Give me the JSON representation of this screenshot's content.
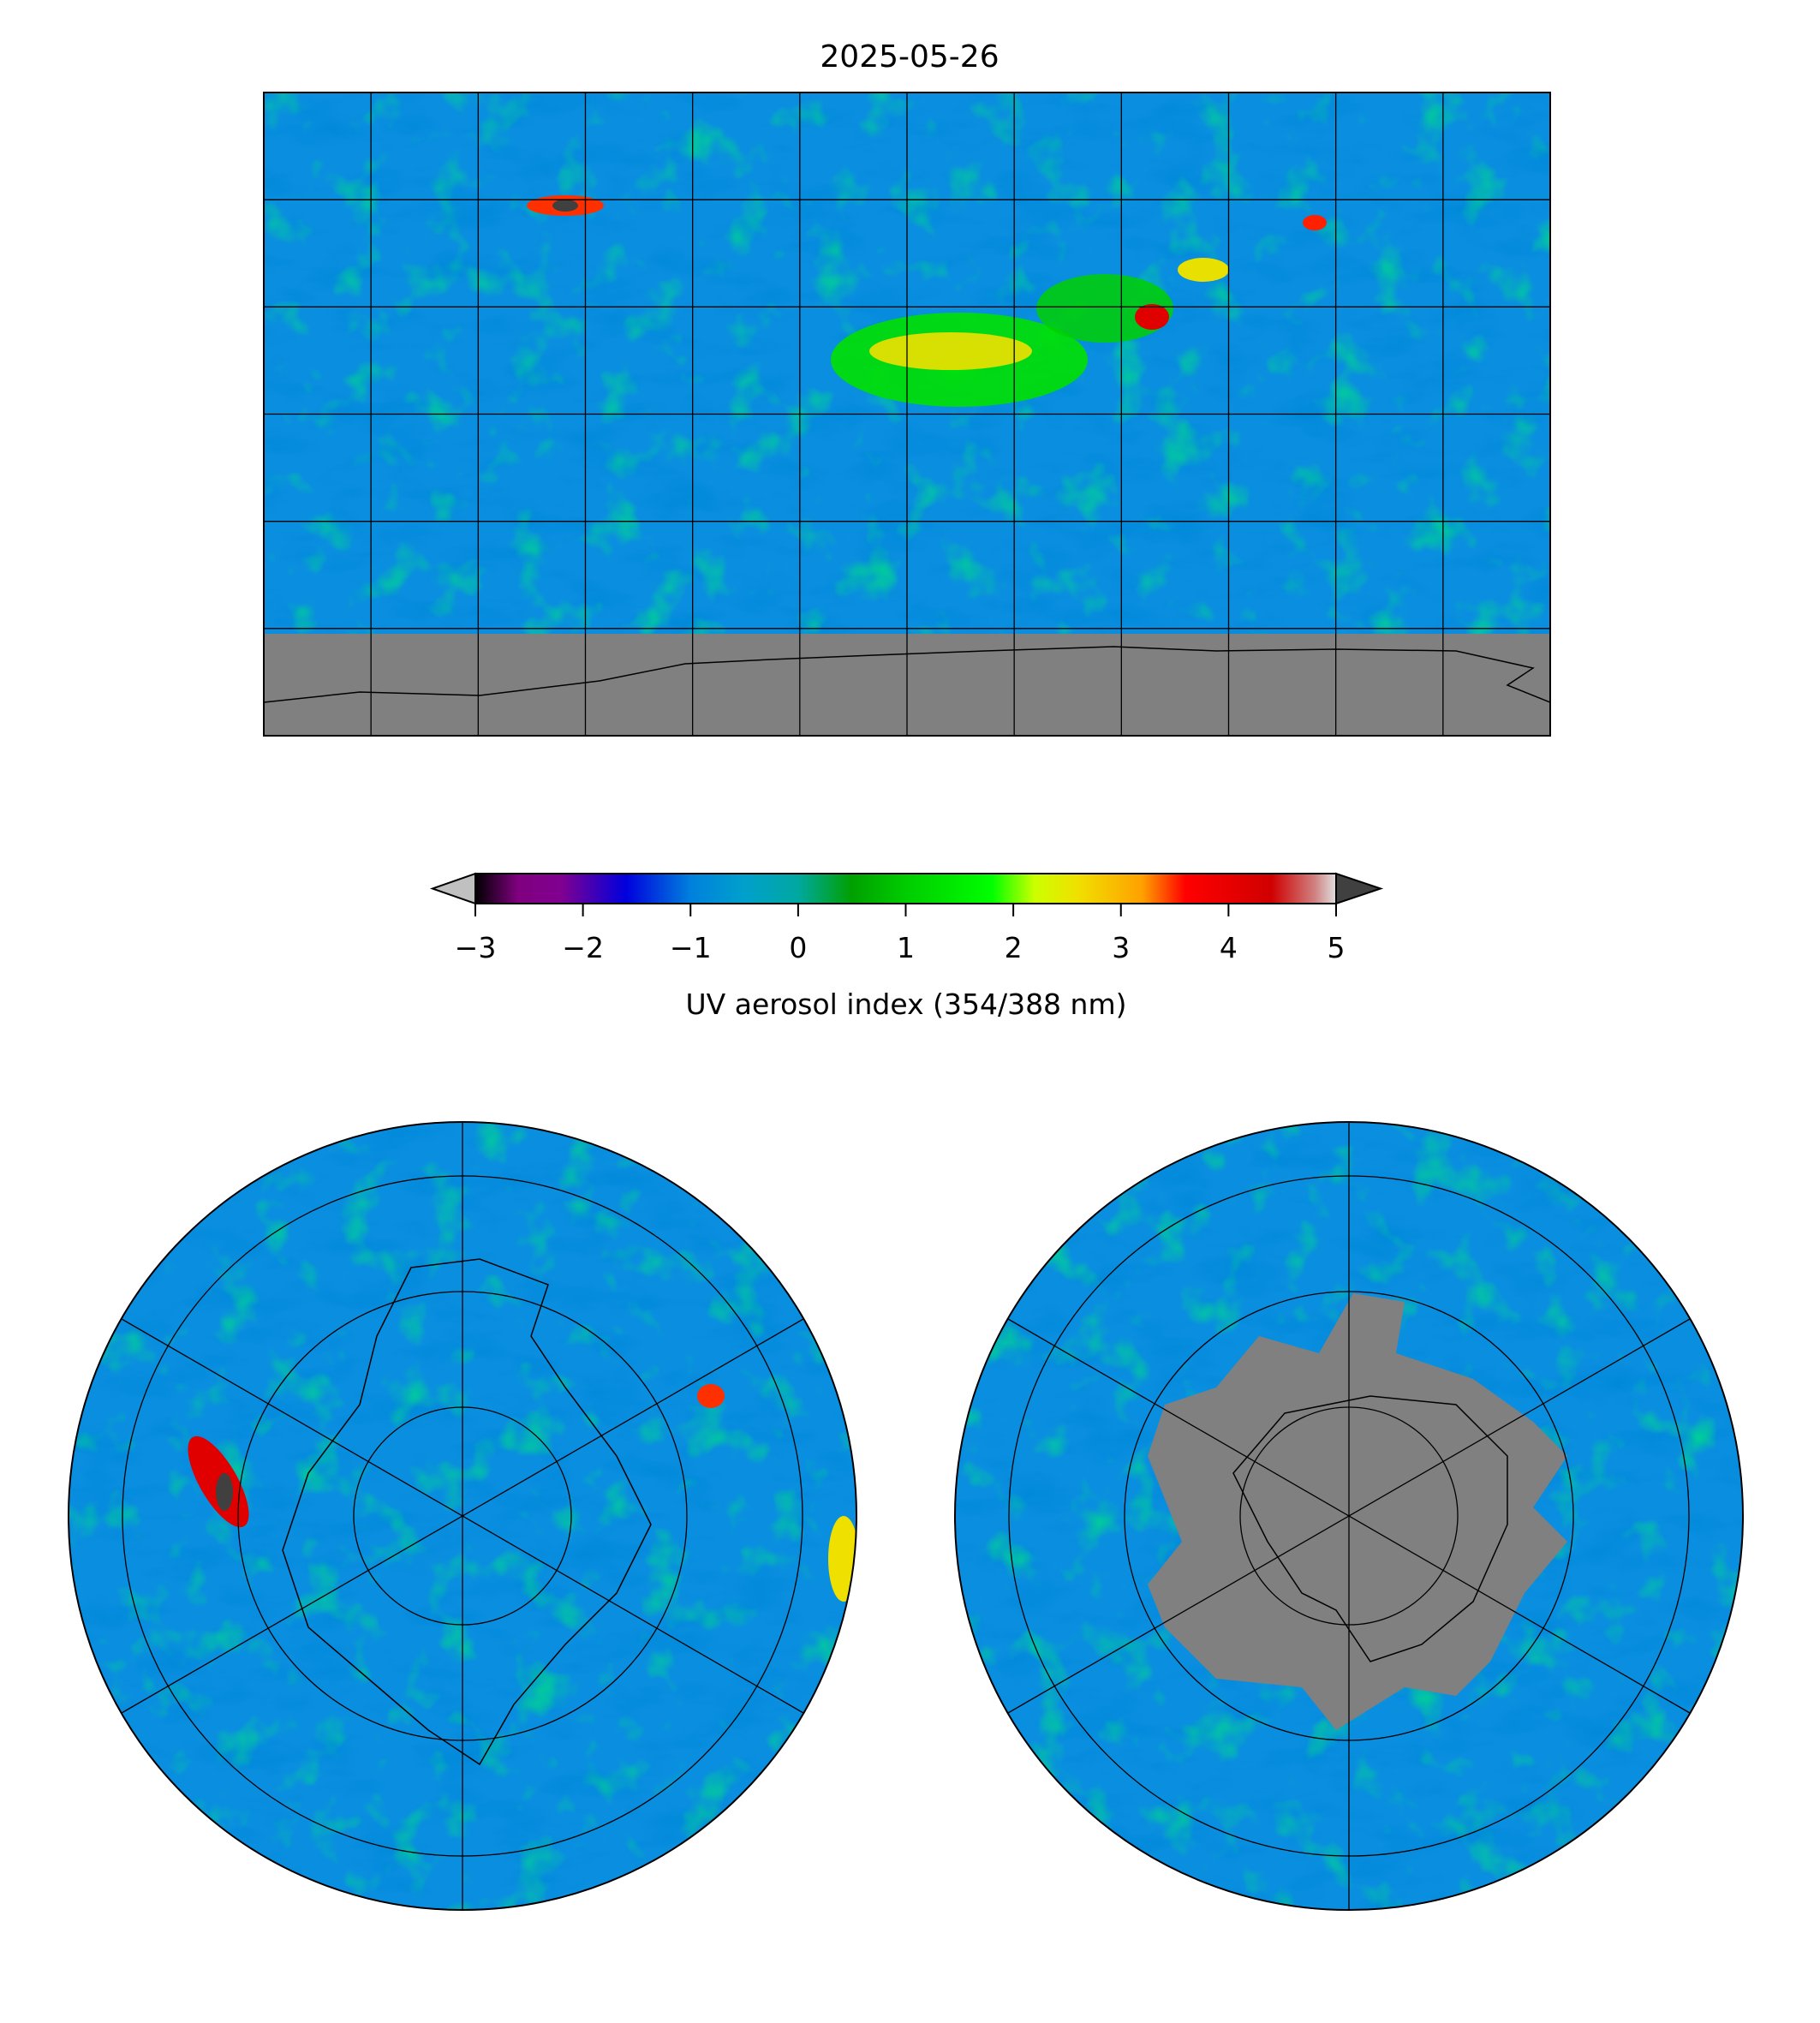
{
  "title": "2025-05-26",
  "colorbar": {
    "label": "UV aerosol index (354/388 nm)",
    "vmin": -3,
    "vmax": 5,
    "ticks": [
      "−3",
      "−2",
      "−1",
      "0",
      "1",
      "2",
      "3",
      "4",
      "5"
    ],
    "tick_values": [
      -3,
      -2,
      -1,
      0,
      1,
      2,
      3,
      4,
      5
    ],
    "extend": "both",
    "under_color": "#c0c0c0",
    "over_color": "#404040",
    "stops": [
      {
        "v": -3.0,
        "c": "#000000"
      },
      {
        "v": -2.6,
        "c": "#800080"
      },
      {
        "v": -2.2,
        "c": "#800090"
      },
      {
        "v": -1.6,
        "c": "#0000dd"
      },
      {
        "v": -1.0,
        "c": "#0080dd"
      },
      {
        "v": -0.5,
        "c": "#00a0cc"
      },
      {
        "v": 0.0,
        "c": "#00a8a0"
      },
      {
        "v": 0.5,
        "c": "#00a000"
      },
      {
        "v": 1.0,
        "c": "#00cc00"
      },
      {
        "v": 1.8,
        "c": "#00ff00"
      },
      {
        "v": 2.2,
        "c": "#ccff00"
      },
      {
        "v": 2.6,
        "c": "#f0e000"
      },
      {
        "v": 3.2,
        "c": "#ffa000"
      },
      {
        "v": 3.6,
        "c": "#ff0000"
      },
      {
        "v": 4.4,
        "c": "#d00000"
      },
      {
        "v": 4.8,
        "c": "#d08080"
      },
      {
        "v": 5.0,
        "c": "#e0e0e0"
      }
    ]
  },
  "panels": {
    "global": {
      "projection": "plate-carree",
      "gridline_spacing_deg": 30,
      "no_data_color": "#808080"
    },
    "north_polar": {
      "projection": "north-polar-stereographic"
    },
    "south_polar": {
      "projection": "south-polar-stereographic"
    }
  }
}
